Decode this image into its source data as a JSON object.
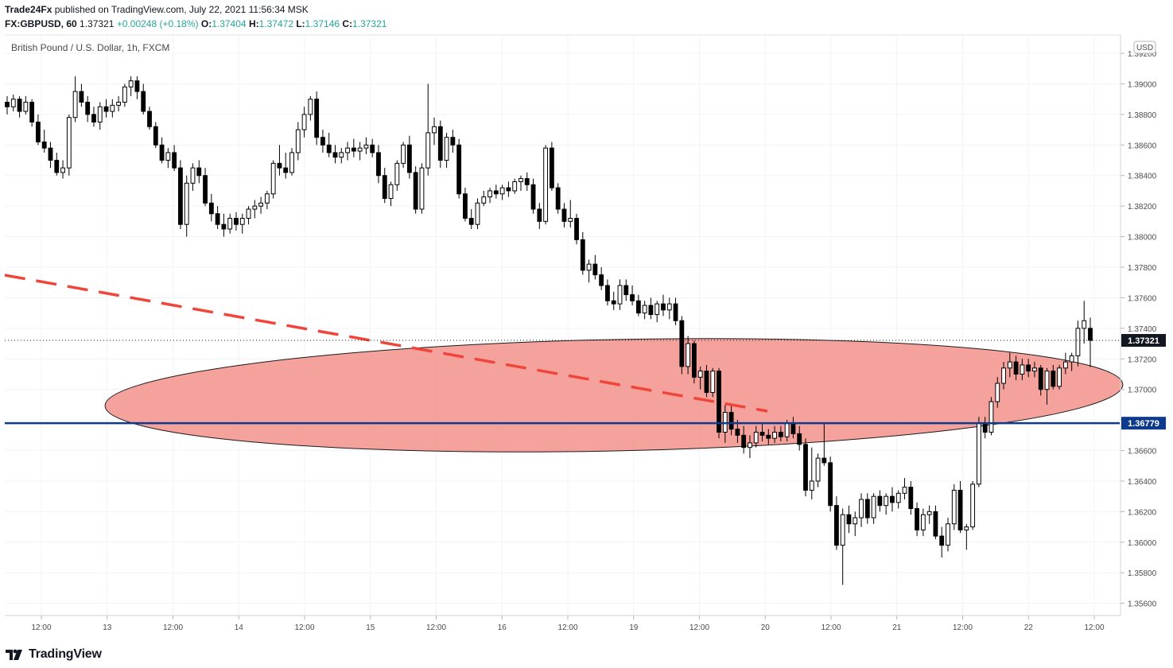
{
  "header": {
    "publisher": "Trade24Fx",
    "published_text": " published on TradingView.com, July 22, 2021 11:56:34 MSK",
    "symbol": "FX:GBPUSD, 60",
    "last": "1.37321",
    "change": "+0.00248 (+0.18%)",
    "o_label": "O:",
    "o_value": "1.37404",
    "h_label": "H:",
    "h_value": "1.37472",
    "l_label": "L:",
    "l_value": "1.37146",
    "c_label": "C:",
    "c_value": "1.37321"
  },
  "footer": {
    "brand": "TradingView"
  },
  "chart_data": {
    "type": "candlestick",
    "title": "British Pound / U.S. Dollar, 1h, FXCM",
    "currency": "USD",
    "ylim": [
      1.3552,
      1.3932
    ],
    "y_ticks": [
      "1.35600",
      "1.35800",
      "1.36000",
      "1.36200",
      "1.36400",
      "1.36600",
      "1.36800",
      "1.37000",
      "1.37200",
      "1.37400",
      "1.37600",
      "1.37800",
      "1.38000",
      "1.38200",
      "1.38400",
      "1.38600",
      "1.38800",
      "1.39000",
      "1.39200"
    ],
    "x_ticks": [
      "12:00",
      "13",
      "12:00",
      "14",
      "12:00",
      "15",
      "12:00",
      "16",
      "12:00",
      "19",
      "12:00",
      "20",
      "12:00",
      "21",
      "12:00",
      "22",
      "12:00"
    ],
    "colors": {
      "up_body": "#ffffff",
      "down_body": "#000000",
      "wick": "#000000",
      "support_line": "#0d3a8a",
      "trend_line": "#f0453a",
      "zone_fill": "#f28b85",
      "last_price_bg": "#131722"
    },
    "last_price_label": "1.37321",
    "support_label": "1.36779",
    "support_level": 1.36779,
    "last_price": 1.37321,
    "candles": [
      [
        1.3888,
        1.3892,
        1.388,
        1.3885
      ],
      [
        1.3885,
        1.3893,
        1.3882,
        1.389
      ],
      [
        1.389,
        1.3892,
        1.3878,
        1.3882
      ],
      [
        1.3882,
        1.3892,
        1.388,
        1.3888
      ],
      [
        1.3888,
        1.389,
        1.3872,
        1.3875
      ],
      [
        1.3875,
        1.388,
        1.386,
        1.3862
      ],
      [
        1.3862,
        1.387,
        1.3855,
        1.3858
      ],
      [
        1.3858,
        1.3862,
        1.3845,
        1.385
      ],
      [
        1.385,
        1.3855,
        1.384,
        1.3842
      ],
      [
        1.3842,
        1.385,
        1.3838,
        1.3845
      ],
      [
        1.3845,
        1.388,
        1.384,
        1.3878
      ],
      [
        1.3878,
        1.3905,
        1.3875,
        1.3895
      ],
      [
        1.3895,
        1.39,
        1.3885,
        1.3888
      ],
      [
        1.3888,
        1.3892,
        1.3875,
        1.388
      ],
      [
        1.388,
        1.3885,
        1.3872,
        1.3875
      ],
      [
        1.3875,
        1.3888,
        1.387,
        1.3885
      ],
      [
        1.3885,
        1.389,
        1.3878,
        1.3882
      ],
      [
        1.3882,
        1.389,
        1.3878,
        1.3886
      ],
      [
        1.3886,
        1.3892,
        1.3882,
        1.3888
      ],
      [
        1.3888,
        1.39,
        1.3885,
        1.3898
      ],
      [
        1.3898,
        1.3905,
        1.3892,
        1.3902
      ],
      [
        1.3902,
        1.3905,
        1.389,
        1.3895
      ],
      [
        1.3895,
        1.39,
        1.388,
        1.3882
      ],
      [
        1.3882,
        1.3885,
        1.387,
        1.3872
      ],
      [
        1.3872,
        1.3875,
        1.3858,
        1.386
      ],
      [
        1.386,
        1.3865,
        1.3848,
        1.385
      ],
      [
        1.385,
        1.3858,
        1.3845,
        1.3855
      ],
      [
        1.3855,
        1.386,
        1.3843,
        1.3845
      ],
      [
        1.3845,
        1.385,
        1.3805,
        1.3808
      ],
      [
        1.3808,
        1.384,
        1.38,
        1.3835
      ],
      [
        1.3835,
        1.3848,
        1.383,
        1.3845
      ],
      [
        1.3845,
        1.385,
        1.3835,
        1.384
      ],
      [
        1.384,
        1.3845,
        1.382,
        1.3822
      ],
      [
        1.3822,
        1.3828,
        1.381,
        1.3815
      ],
      [
        1.3815,
        1.382,
        1.3805,
        1.3808
      ],
      [
        1.3808,
        1.3815,
        1.38,
        1.3805
      ],
      [
        1.3805,
        1.3815,
        1.3802,
        1.3812
      ],
      [
        1.3812,
        1.3816,
        1.3804,
        1.3808
      ],
      [
        1.3808,
        1.3815,
        1.3802,
        1.3812
      ],
      [
        1.3812,
        1.382,
        1.3808,
        1.3818
      ],
      [
        1.3818,
        1.3824,
        1.3812,
        1.382
      ],
      [
        1.382,
        1.3826,
        1.3815,
        1.3822
      ],
      [
        1.3822,
        1.383,
        1.3818,
        1.3828
      ],
      [
        1.3828,
        1.385,
        1.3825,
        1.3848
      ],
      [
        1.3848,
        1.386,
        1.384,
        1.3845
      ],
      [
        1.3845,
        1.3855,
        1.3838,
        1.3842
      ],
      [
        1.3842,
        1.3858,
        1.384,
        1.3855
      ],
      [
        1.3855,
        1.3875,
        1.385,
        1.387
      ],
      [
        1.387,
        1.3885,
        1.3865,
        1.388
      ],
      [
        1.388,
        1.3892,
        1.3876,
        1.389
      ],
      [
        1.389,
        1.3895,
        1.386,
        1.3865
      ],
      [
        1.3865,
        1.387,
        1.3855,
        1.386
      ],
      [
        1.386,
        1.3868,
        1.3852,
        1.3855
      ],
      [
        1.3855,
        1.386,
        1.3848,
        1.3852
      ],
      [
        1.3852,
        1.3858,
        1.3848,
        1.3855
      ],
      [
        1.3855,
        1.3862,
        1.385,
        1.3858
      ],
      [
        1.3858,
        1.3864,
        1.3852,
        1.3856
      ],
      [
        1.3856,
        1.3862,
        1.385,
        1.3858
      ],
      [
        1.3858,
        1.3865,
        1.3854,
        1.386
      ],
      [
        1.386,
        1.3864,
        1.3852,
        1.3855
      ],
      [
        1.3855,
        1.386,
        1.3835,
        1.384
      ],
      [
        1.384,
        1.3845,
        1.3822,
        1.3825
      ],
      [
        1.3825,
        1.3836,
        1.382,
        1.3834
      ],
      [
        1.3834,
        1.385,
        1.383,
        1.3848
      ],
      [
        1.3848,
        1.3862,
        1.3845,
        1.386
      ],
      [
        1.386,
        1.3866,
        1.3838,
        1.3842
      ],
      [
        1.3842,
        1.3846,
        1.3815,
        1.3818
      ],
      [
        1.3818,
        1.3848,
        1.3815,
        1.3845
      ],
      [
        1.3845,
        1.39,
        1.384,
        1.3868
      ],
      [
        1.3868,
        1.3878,
        1.386,
        1.3872
      ],
      [
        1.3872,
        1.3876,
        1.3845,
        1.385
      ],
      [
        1.385,
        1.3868,
        1.3845,
        1.3865
      ],
      [
        1.3865,
        1.387,
        1.3855,
        1.386
      ],
      [
        1.386,
        1.3864,
        1.3825,
        1.3828
      ],
      [
        1.3828,
        1.3832,
        1.381,
        1.3812
      ],
      [
        1.3812,
        1.3818,
        1.3805,
        1.3808
      ],
      [
        1.3808,
        1.3825,
        1.3805,
        1.3822
      ],
      [
        1.3822,
        1.383,
        1.382,
        1.3826
      ],
      [
        1.3826,
        1.3832,
        1.3822,
        1.383
      ],
      [
        1.383,
        1.3834,
        1.3825,
        1.3828
      ],
      [
        1.3828,
        1.3834,
        1.3824,
        1.3832
      ],
      [
        1.3832,
        1.3836,
        1.3826,
        1.383
      ],
      [
        1.383,
        1.3838,
        1.3828,
        1.3836
      ],
      [
        1.3836,
        1.384,
        1.383,
        1.3838
      ],
      [
        1.3838,
        1.3842,
        1.383,
        1.3834
      ],
      [
        1.3834,
        1.3838,
        1.3815,
        1.3818
      ],
      [
        1.3818,
        1.3822,
        1.3805,
        1.381
      ],
      [
        1.381,
        1.386,
        1.3808,
        1.3858
      ],
      [
        1.3858,
        1.3862,
        1.383,
        1.3832
      ],
      [
        1.3832,
        1.3835,
        1.3815,
        1.3818
      ],
      [
        1.3818,
        1.3822,
        1.3806,
        1.381
      ],
      [
        1.381,
        1.3824,
        1.3806,
        1.3812
      ],
      [
        1.3812,
        1.3815,
        1.3795,
        1.3798
      ],
      [
        1.3798,
        1.3803,
        1.3775,
        1.3778
      ],
      [
        1.3778,
        1.3785,
        1.377,
        1.3782
      ],
      [
        1.3782,
        1.3788,
        1.3772,
        1.3775
      ],
      [
        1.3775,
        1.378,
        1.3765,
        1.3768
      ],
      [
        1.3768,
        1.3772,
        1.3755,
        1.3758
      ],
      [
        1.3758,
        1.3764,
        1.3752,
        1.3756
      ],
      [
        1.3756,
        1.3772,
        1.3752,
        1.3768
      ],
      [
        1.3768,
        1.3772,
        1.3758,
        1.3762
      ],
      [
        1.3762,
        1.3768,
        1.3755,
        1.3758
      ],
      [
        1.3758,
        1.3762,
        1.3748,
        1.375
      ],
      [
        1.375,
        1.3758,
        1.3746,
        1.3755
      ],
      [
        1.3755,
        1.376,
        1.3746,
        1.3749
      ],
      [
        1.3749,
        1.3758,
        1.3744,
        1.3756
      ],
      [
        1.3756,
        1.3762,
        1.3748,
        1.3752
      ],
      [
        1.3752,
        1.376,
        1.3746,
        1.3756
      ],
      [
        1.3756,
        1.376,
        1.3742,
        1.3745
      ],
      [
        1.3745,
        1.3748,
        1.371,
        1.3715
      ],
      [
        1.3715,
        1.3735,
        1.371,
        1.373
      ],
      [
        1.373,
        1.3732,
        1.3704,
        1.3708
      ],
      [
        1.3708,
        1.3715,
        1.37,
        1.3712
      ],
      [
        1.3712,
        1.3716,
        1.3695,
        1.3698
      ],
      [
        1.3698,
        1.3714,
        1.3695,
        1.3712
      ],
      [
        1.3712,
        1.3714,
        1.3668,
        1.3672
      ],
      [
        1.3672,
        1.369,
        1.3665,
        1.3685
      ],
      [
        1.3685,
        1.369,
        1.367,
        1.3674
      ],
      [
        1.3674,
        1.368,
        1.3665,
        1.367
      ],
      [
        1.367,
        1.3676,
        1.3658,
        1.3662
      ],
      [
        1.3662,
        1.367,
        1.3655,
        1.3665
      ],
      [
        1.3665,
        1.3676,
        1.3662,
        1.3672
      ],
      [
        1.3672,
        1.3678,
        1.3666,
        1.367
      ],
      [
        1.367,
        1.3674,
        1.3664,
        1.3668
      ],
      [
        1.3668,
        1.3676,
        1.3665,
        1.3672
      ],
      [
        1.3672,
        1.3676,
        1.3666,
        1.3669
      ],
      [
        1.3669,
        1.368,
        1.3666,
        1.3678
      ],
      [
        1.3678,
        1.3682,
        1.3668,
        1.3671
      ],
      [
        1.3671,
        1.3676,
        1.366,
        1.3664
      ],
      [
        1.3664,
        1.3668,
        1.363,
        1.3634
      ],
      [
        1.3634,
        1.3662,
        1.3628,
        1.364
      ],
      [
        1.364,
        1.3658,
        1.3636,
        1.3655
      ],
      [
        1.3655,
        1.3678,
        1.365,
        1.3652
      ],
      [
        1.3652,
        1.3656,
        1.362,
        1.3624
      ],
      [
        1.3624,
        1.363,
        1.3595,
        1.3598
      ],
      [
        1.3598,
        1.3622,
        1.3572,
        1.3618
      ],
      [
        1.3618,
        1.3624,
        1.3606,
        1.3612
      ],
      [
        1.3612,
        1.362,
        1.3604,
        1.3616
      ],
      [
        1.3616,
        1.3632,
        1.361,
        1.3628
      ],
      [
        1.3628,
        1.3632,
        1.3612,
        1.3616
      ],
      [
        1.3616,
        1.3632,
        1.3612,
        1.363
      ],
      [
        1.363,
        1.3634,
        1.362,
        1.3624
      ],
      [
        1.3624,
        1.3632,
        1.3618,
        1.363
      ],
      [
        1.363,
        1.3636,
        1.362,
        1.3626
      ],
      [
        1.3626,
        1.3634,
        1.3622,
        1.3632
      ],
      [
        1.3632,
        1.3642,
        1.3628,
        1.3636
      ],
      [
        1.3636,
        1.364,
        1.3618,
        1.3622
      ],
      [
        1.3622,
        1.3626,
        1.3604,
        1.3608
      ],
      [
        1.3608,
        1.3622,
        1.3604,
        1.3618
      ],
      [
        1.3618,
        1.3624,
        1.3612,
        1.362
      ],
      [
        1.362,
        1.3624,
        1.3602,
        1.3604
      ],
      [
        1.3604,
        1.361,
        1.359,
        1.3598
      ],
      [
        1.3598,
        1.3616,
        1.3594,
        1.3612
      ],
      [
        1.3612,
        1.3638,
        1.3608,
        1.3634
      ],
      [
        1.3634,
        1.364,
        1.3606,
        1.3608
      ],
      [
        1.3608,
        1.3612,
        1.3595,
        1.361
      ],
      [
        1.361,
        1.364,
        1.3608,
        1.3638
      ],
      [
        1.3638,
        1.3682,
        1.3636,
        1.3678
      ],
      [
        1.3678,
        1.3682,
        1.3668,
        1.3672
      ],
      [
        1.3672,
        1.3695,
        1.367,
        1.3692
      ],
      [
        1.3692,
        1.3708,
        1.3688,
        1.3704
      ],
      [
        1.3704,
        1.3718,
        1.37,
        1.3714
      ],
      [
        1.3714,
        1.3724,
        1.3708,
        1.3718
      ],
      [
        1.3718,
        1.3722,
        1.3706,
        1.371
      ],
      [
        1.371,
        1.372,
        1.3706,
        1.3716
      ],
      [
        1.3716,
        1.372,
        1.3708,
        1.3712
      ],
      [
        1.3712,
        1.3718,
        1.3708,
        1.3714
      ],
      [
        1.3714,
        1.3716,
        1.3696,
        1.37
      ],
      [
        1.37,
        1.3714,
        1.369,
        1.3712
      ],
      [
        1.3712,
        1.3716,
        1.37,
        1.3702
      ],
      [
        1.3702,
        1.3716,
        1.37,
        1.3714
      ],
      [
        1.3714,
        1.3724,
        1.371,
        1.3718
      ],
      [
        1.3718,
        1.3724,
        1.3712,
        1.3722
      ],
      [
        1.3722,
        1.3745,
        1.3715,
        1.374
      ],
      [
        1.374,
        1.3758,
        1.373,
        1.3745
      ],
      [
        1.374,
        1.3747,
        1.37146,
        1.37321
      ]
    ],
    "annotations": {
      "zone": "ellipse",
      "trend_line": "dashed"
    }
  }
}
